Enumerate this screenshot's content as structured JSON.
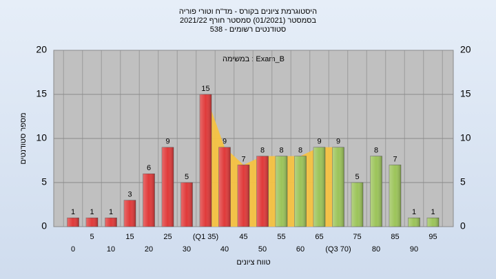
{
  "chart_data": {
    "type": "bar",
    "title": "היסטוגרמת ציונים בקורס - מד\"ח וטורי פוריה",
    "subtitle": [
      "בסמסטר  (01/2021)  סמסטר חורף  2021/22",
      "סטודנטים רשומים - 538"
    ],
    "annotation": "במשימה : Exam_B",
    "x_label": "טווח ציונים",
    "y_label": "מספר סטודנטים",
    "categories": [
      "0",
      "5",
      "10",
      "15",
      "20",
      "25",
      "30",
      "(Q1 35)",
      "40",
      "45",
      "50",
      "55",
      "60",
      "65",
      "(Q3 70)",
      "75",
      "80",
      "85",
      "90",
      "95"
    ],
    "values": [
      1,
      1,
      1,
      3,
      6,
      9,
      5,
      15,
      9,
      7,
      8,
      8,
      8,
      9,
      9,
      5,
      8,
      7,
      1,
      1
    ],
    "colors": [
      "#e03a3a",
      "#e03a3a",
      "#e03a3a",
      "#e03a3a",
      "#e03a3a",
      "#e03a3a",
      "#e03a3a",
      "#e03a3a",
      "#e03a3a",
      "#e03a3a",
      "#e03a3a",
      "#9cc45a",
      "#9cc45a",
      "#9cc45a",
      "#9cc45a",
      "#9cc45a",
      "#9cc45a",
      "#9cc45a",
      "#9cc45a",
      "#9cc45a"
    ],
    "quartile_area": {
      "color": "#f5c242",
      "from": 7,
      "to": 14
    },
    "ylim": [
      0,
      20
    ],
    "yticks": [
      0,
      5,
      10,
      15,
      20
    ],
    "grid": true
  }
}
